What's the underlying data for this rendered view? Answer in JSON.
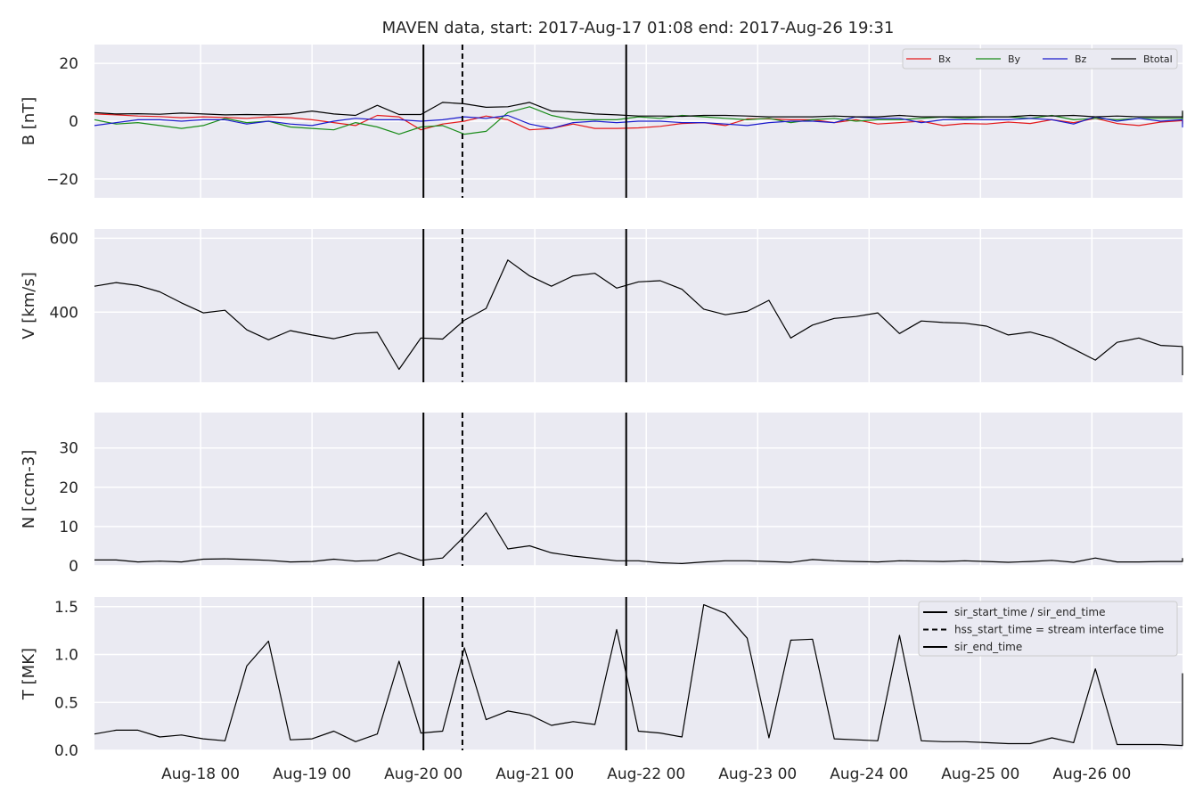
{
  "title": "MAVEN data, start: 2017-Aug-17 01:08  end: 2017-Aug-26 19:31",
  "chart_data": {
    "type": "line",
    "x_unit": "days since 2017-Aug-17 00:00",
    "x_start": 0.0472,
    "x_end": 9.8132,
    "x_step": 0.1953,
    "x_ticks": [
      {
        "value": 1,
        "label": "Aug-18 00"
      },
      {
        "value": 2,
        "label": "Aug-19 00"
      },
      {
        "value": 3,
        "label": "Aug-20 00"
      },
      {
        "value": 4,
        "label": "Aug-21 00"
      },
      {
        "value": 5,
        "label": "Aug-22 00"
      },
      {
        "value": 6,
        "label": "Aug-23 00"
      },
      {
        "value": 7,
        "label": "Aug-24 00"
      },
      {
        "value": 8,
        "label": "Aug-25 00"
      },
      {
        "value": 9,
        "label": "Aug-26 00"
      }
    ],
    "vertical_lines": [
      {
        "x": 3.0,
        "style": "solid"
      },
      {
        "x": 3.35,
        "style": "dashed"
      },
      {
        "x": 4.82,
        "style": "solid"
      }
    ],
    "panels": [
      {
        "ylabel": "B [nT]",
        "ylim": [
          -26.5,
          26.5
        ],
        "yticks": [
          {
            "value": 20,
            "label": "20"
          },
          {
            "value": 0,
            "label": "0"
          },
          {
            "value": -20,
            "label": "−20"
          }
        ],
        "legend": "top-right-inline",
        "series": [
          {
            "name": "Bx",
            "color": "#e41a1c",
            "values": [
              2.5,
              2.2,
              1.8,
              1.6,
              1.2,
              1.5,
              1.3,
              1.0,
              1.5,
              1.2,
              0.5,
              -0.5,
              -1.5,
              2.0,
              1.5,
              -3.0,
              -1.0,
              0.0,
              1.8,
              0.5,
              -3.0,
              -2.5,
              -1.0,
              -2.5,
              -2.5,
              -2.3,
              -1.8,
              -0.8,
              -0.5,
              -1.5,
              0.8,
              0.8,
              0.5,
              0.5,
              -0.5,
              0.5,
              -1.0,
              -0.5,
              0.0,
              -1.5,
              -0.8,
              -1.0,
              -0.3,
              -0.8,
              0.5,
              -0.5,
              1.0,
              -0.8,
              -1.5,
              -0.3,
              0.2,
              0.0,
              -0.8,
              -0.8,
              0.8,
              0.8
            ]
          },
          {
            "name": "By",
            "color": "#1a8c1a",
            "values": [
              0.5,
              -1.0,
              -0.5,
              -1.5,
              -2.5,
              -1.5,
              1.0,
              -0.5,
              0.0,
              -2.0,
              -2.5,
              -3.0,
              -0.5,
              -2.0,
              -4.5,
              -2.0,
              -1.5,
              -4.5,
              -3.5,
              3.0,
              5.0,
              2.0,
              0.5,
              0.5,
              0.5,
              1.5,
              1.0,
              2.0,
              1.5,
              1.0,
              0.5,
              1.0,
              -0.5,
              0.5,
              1.0,
              0.0,
              0.5,
              0.5,
              1.0,
              1.5,
              1.0,
              1.5,
              1.5,
              1.0,
              2.0,
              0.5,
              1.0,
              0.5,
              1.0,
              1.0,
              1.0,
              0.5,
              0.5,
              3.0,
              2.0,
              1.5
            ]
          },
          {
            "name": "Bz",
            "color": "#1a1acc",
            "values": [
              -1.5,
              -0.5,
              0.5,
              0.5,
              0.0,
              0.5,
              0.5,
              -1.0,
              0.0,
              -1.0,
              -1.5,
              0.0,
              1.0,
              0.5,
              0.5,
              0.0,
              0.5,
              1.5,
              1.0,
              2.0,
              -1.0,
              -2.5,
              -0.5,
              0.0,
              -0.5,
              0.0,
              0.0,
              -0.5,
              -0.5,
              -1.0,
              -1.5,
              -0.5,
              0.0,
              0.0,
              -0.5,
              1.5,
              1.0,
              1.0,
              -0.5,
              0.5,
              0.5,
              0.5,
              0.5,
              1.0,
              0.5,
              -1.0,
              1.5,
              0.0,
              1.0,
              0.0,
              0.5,
              0.0,
              0.0,
              -2.0,
              -0.5,
              0.0
            ]
          },
          {
            "name": "Btotal",
            "color": "#000000",
            "values": [
              3.0,
              2.5,
              2.6,
              2.4,
              2.8,
              2.5,
              2.2,
              2.3,
              2.2,
              2.5,
              3.5,
              2.5,
              2.0,
              5.5,
              2.3,
              2.3,
              6.5,
              6.0,
              4.8,
              5.0,
              6.5,
              3.5,
              3.2,
              2.5,
              2.2,
              1.8,
              1.8,
              1.7,
              2.0,
              2.0,
              1.8,
              1.5,
              1.5,
              1.5,
              1.8,
              1.5,
              1.5,
              2.0,
              1.5,
              1.5,
              1.5,
              1.5,
              1.5,
              2.0,
              1.8,
              2.0,
              1.5,
              1.8,
              1.5,
              1.5,
              1.5,
              1.2,
              1.2,
              3.5,
              2.2,
              2.0
            ]
          }
        ]
      },
      {
        "ylabel": "V [km/s]",
        "ylim": [
          210,
          625
        ],
        "yticks": [
          {
            "value": 600,
            "label": "600"
          },
          {
            "value": 400,
            "label": "400"
          }
        ],
        "series": [
          {
            "name": "V",
            "color": "#000000",
            "values": [
              470,
              480,
              472,
              455,
              425,
              398,
              405,
              352,
              325,
              350,
              338,
              328,
              342,
              345,
              245,
              330,
              327,
              378,
              410,
              541,
              498,
              470,
              498,
              505,
              465,
              482,
              485,
              462,
              408,
              393,
              402,
              432,
              330,
              365,
              383,
              388,
              398,
              342,
              376,
              372,
              370,
              362,
              338,
              346,
              330,
              300,
              270,
              318,
              330,
              310,
              307,
              300,
              230,
              229,
              229,
              229
            ]
          }
        ]
      },
      {
        "ylabel": "N [ccm-3]",
        "ylim": [
          0,
          39
        ],
        "yticks": [
          {
            "value": 30,
            "label": "30"
          },
          {
            "value": 20,
            "label": "20"
          },
          {
            "value": 10,
            "label": "10"
          },
          {
            "value": 0,
            "label": "0"
          }
        ],
        "series": [
          {
            "name": "N",
            "color": "#000000",
            "values": [
              1.5,
              1.5,
              1.0,
              1.2,
              1.0,
              1.7,
              1.8,
              1.6,
              1.4,
              1.0,
              1.1,
              1.7,
              1.2,
              1.4,
              3.3,
              1.4,
              2.0,
              7.5,
              13.5,
              4.3,
              5.1,
              3.3,
              2.5,
              1.9,
              1.3,
              1.3,
              0.8,
              0.6,
              1.0,
              1.3,
              1.3,
              1.1,
              0.9,
              1.6,
              1.3,
              1.1,
              1.0,
              1.3,
              1.2,
              1.1,
              1.3,
              1.1,
              0.9,
              1.1,
              1.4,
              0.9,
              2.0,
              1.0,
              1.0,
              1.1,
              1.1,
              1.1,
              1.9,
              2.0,
              2.0,
              2.0
            ]
          }
        ]
      },
      {
        "ylabel": "T [MK]",
        "ylim": [
          0,
          1.6
        ],
        "yticks": [
          {
            "value": 1.5,
            "label": "1.5"
          },
          {
            "value": 1.0,
            "label": "1.0"
          },
          {
            "value": 0.5,
            "label": "0.5"
          },
          {
            "value": 0.0,
            "label": "0.0"
          }
        ],
        "legend": "top-right",
        "legend_entries": [
          {
            "label": "sir_start_time / sir_end_time",
            "style": "solid"
          },
          {
            "label": "hss_start_time = stream interface time",
            "style": "dashed"
          },
          {
            "label": "sir_end_time",
            "style": "solid"
          }
        ],
        "series": [
          {
            "name": "T",
            "color": "#000000",
            "values": [
              0.17,
              0.21,
              0.21,
              0.14,
              0.16,
              0.12,
              0.1,
              0.88,
              1.14,
              0.11,
              0.12,
              0.2,
              0.09,
              0.17,
              0.93,
              0.18,
              0.2,
              1.07,
              0.32,
              0.41,
              0.37,
              0.26,
              0.3,
              0.27,
              1.26,
              0.2,
              0.18,
              0.14,
              1.52,
              1.43,
              1.17,
              0.13,
              1.15,
              1.16,
              0.12,
              0.11,
              0.1,
              1.2,
              0.1,
              0.09,
              0.09,
              0.08,
              0.07,
              0.07,
              0.13,
              0.08,
              0.85,
              0.06,
              0.06,
              0.06,
              0.05,
              0.05,
              0.8,
              0.71,
              0.71,
              0.71
            ]
          }
        ]
      }
    ]
  }
}
